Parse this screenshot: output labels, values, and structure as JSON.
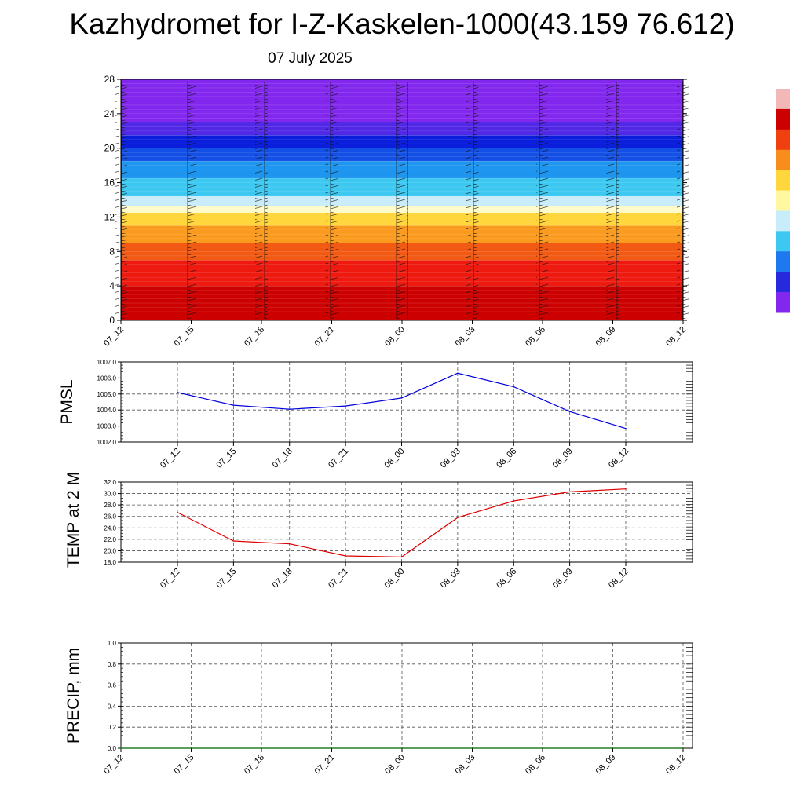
{
  "title": "Kazhydromet for I-Z-Kaskelen-1000(43.159 76.612)",
  "date": "07 July 2025",
  "colors": {
    "pmsl_line": "#0000dd",
    "temp_line": "#dd0000",
    "precip_line": "#006400",
    "grid": "#555555"
  },
  "chart_data": [
    {
      "type": "heatmap",
      "title": "",
      "xlabel": "",
      "ylabel": "",
      "x_ticks": [
        "07_12",
        "07_15",
        "07_18",
        "07_21",
        "08_00",
        "08_03",
        "08_06",
        "08_09",
        "08_12"
      ],
      "ylim": [
        0,
        28
      ],
      "y_ticks": [
        0,
        4,
        8,
        12,
        16,
        20,
        24,
        28
      ],
      "bands": [
        {
          "from": 0,
          "to": 4,
          "color": "#cc0000"
        },
        {
          "from": 4,
          "to": 7,
          "color": "#ee1a10"
        },
        {
          "from": 7,
          "to": 9,
          "color": "#f25a14"
        },
        {
          "from": 9,
          "to": 11,
          "color": "#fa9a1e"
        },
        {
          "from": 11,
          "to": 12.5,
          "color": "#ffd63c"
        },
        {
          "from": 12.5,
          "to": 13.3,
          "color": "#fffbc8"
        },
        {
          "from": 13.3,
          "to": 14.5,
          "color": "#c8ecfa"
        },
        {
          "from": 14.5,
          "to": 16.5,
          "color": "#3cc8f0"
        },
        {
          "from": 16.5,
          "to": 18.5,
          "color": "#1e96f0"
        },
        {
          "from": 18.5,
          "to": 20,
          "color": "#1450e6"
        },
        {
          "from": 20,
          "to": 21.5,
          "color": "#0a1edc"
        },
        {
          "from": 21.5,
          "to": 23,
          "color": "#5028e6"
        },
        {
          "from": 23,
          "to": 28,
          "color": "#8228ee"
        }
      ],
      "colorbar": [
        "#f2b8b8",
        "#cc0000",
        "#f04010",
        "#f88c1c",
        "#ffd63c",
        "#fff8a0",
        "#c8ecfa",
        "#3cc8f0",
        "#1e78f0",
        "#2828dc",
        "#8228ee"
      ]
    },
    {
      "type": "line",
      "ylabel": "PMSL",
      "x": [
        "07_12",
        "07_15",
        "07_18",
        "07_21",
        "08_00",
        "08_03",
        "08_06",
        "08_09",
        "08_12"
      ],
      "ylim": [
        1002.0,
        1007.0
      ],
      "y_ticks": [
        "1002.0",
        "1003.0",
        "1004.0",
        "1005.0",
        "1006.0",
        "1007.0"
      ],
      "grid": true,
      "series": [
        {
          "values": [
            1005.1,
            1004.3,
            1004.05,
            1004.25,
            1004.75,
            1006.3,
            1005.45,
            1003.9,
            1002.85
          ]
        }
      ]
    },
    {
      "type": "line",
      "ylabel": "TEMP at 2 M",
      "x": [
        "07_12",
        "07_15",
        "07_18",
        "07_21",
        "08_00",
        "08_03",
        "08_06",
        "08_09",
        "08_12"
      ],
      "ylim": [
        18.0,
        32.0
      ],
      "y_ticks": [
        "18.0",
        "20.0",
        "22.0",
        "24.0",
        "26.0",
        "28.0",
        "30.0",
        "32.0"
      ],
      "grid": true,
      "series": [
        {
          "values": [
            26.7,
            21.7,
            21.2,
            19.1,
            18.9,
            25.8,
            28.7,
            30.3,
            30.8
          ]
        }
      ]
    },
    {
      "type": "line",
      "ylabel": "PRECIP, mm",
      "x": [
        "07_12",
        "07_15",
        "07_18",
        "07_21",
        "08_00",
        "08_03",
        "08_06",
        "08_09",
        "08_12"
      ],
      "ylim": [
        0.0,
        1.0
      ],
      "y_ticks": [
        "0.0",
        "0.2",
        "0.4",
        "0.6",
        "0.8",
        "1.0"
      ],
      "grid": true,
      "series": [
        {
          "values": [
            0,
            0,
            0,
            0,
            0,
            0,
            0,
            0,
            0
          ]
        }
      ]
    }
  ]
}
